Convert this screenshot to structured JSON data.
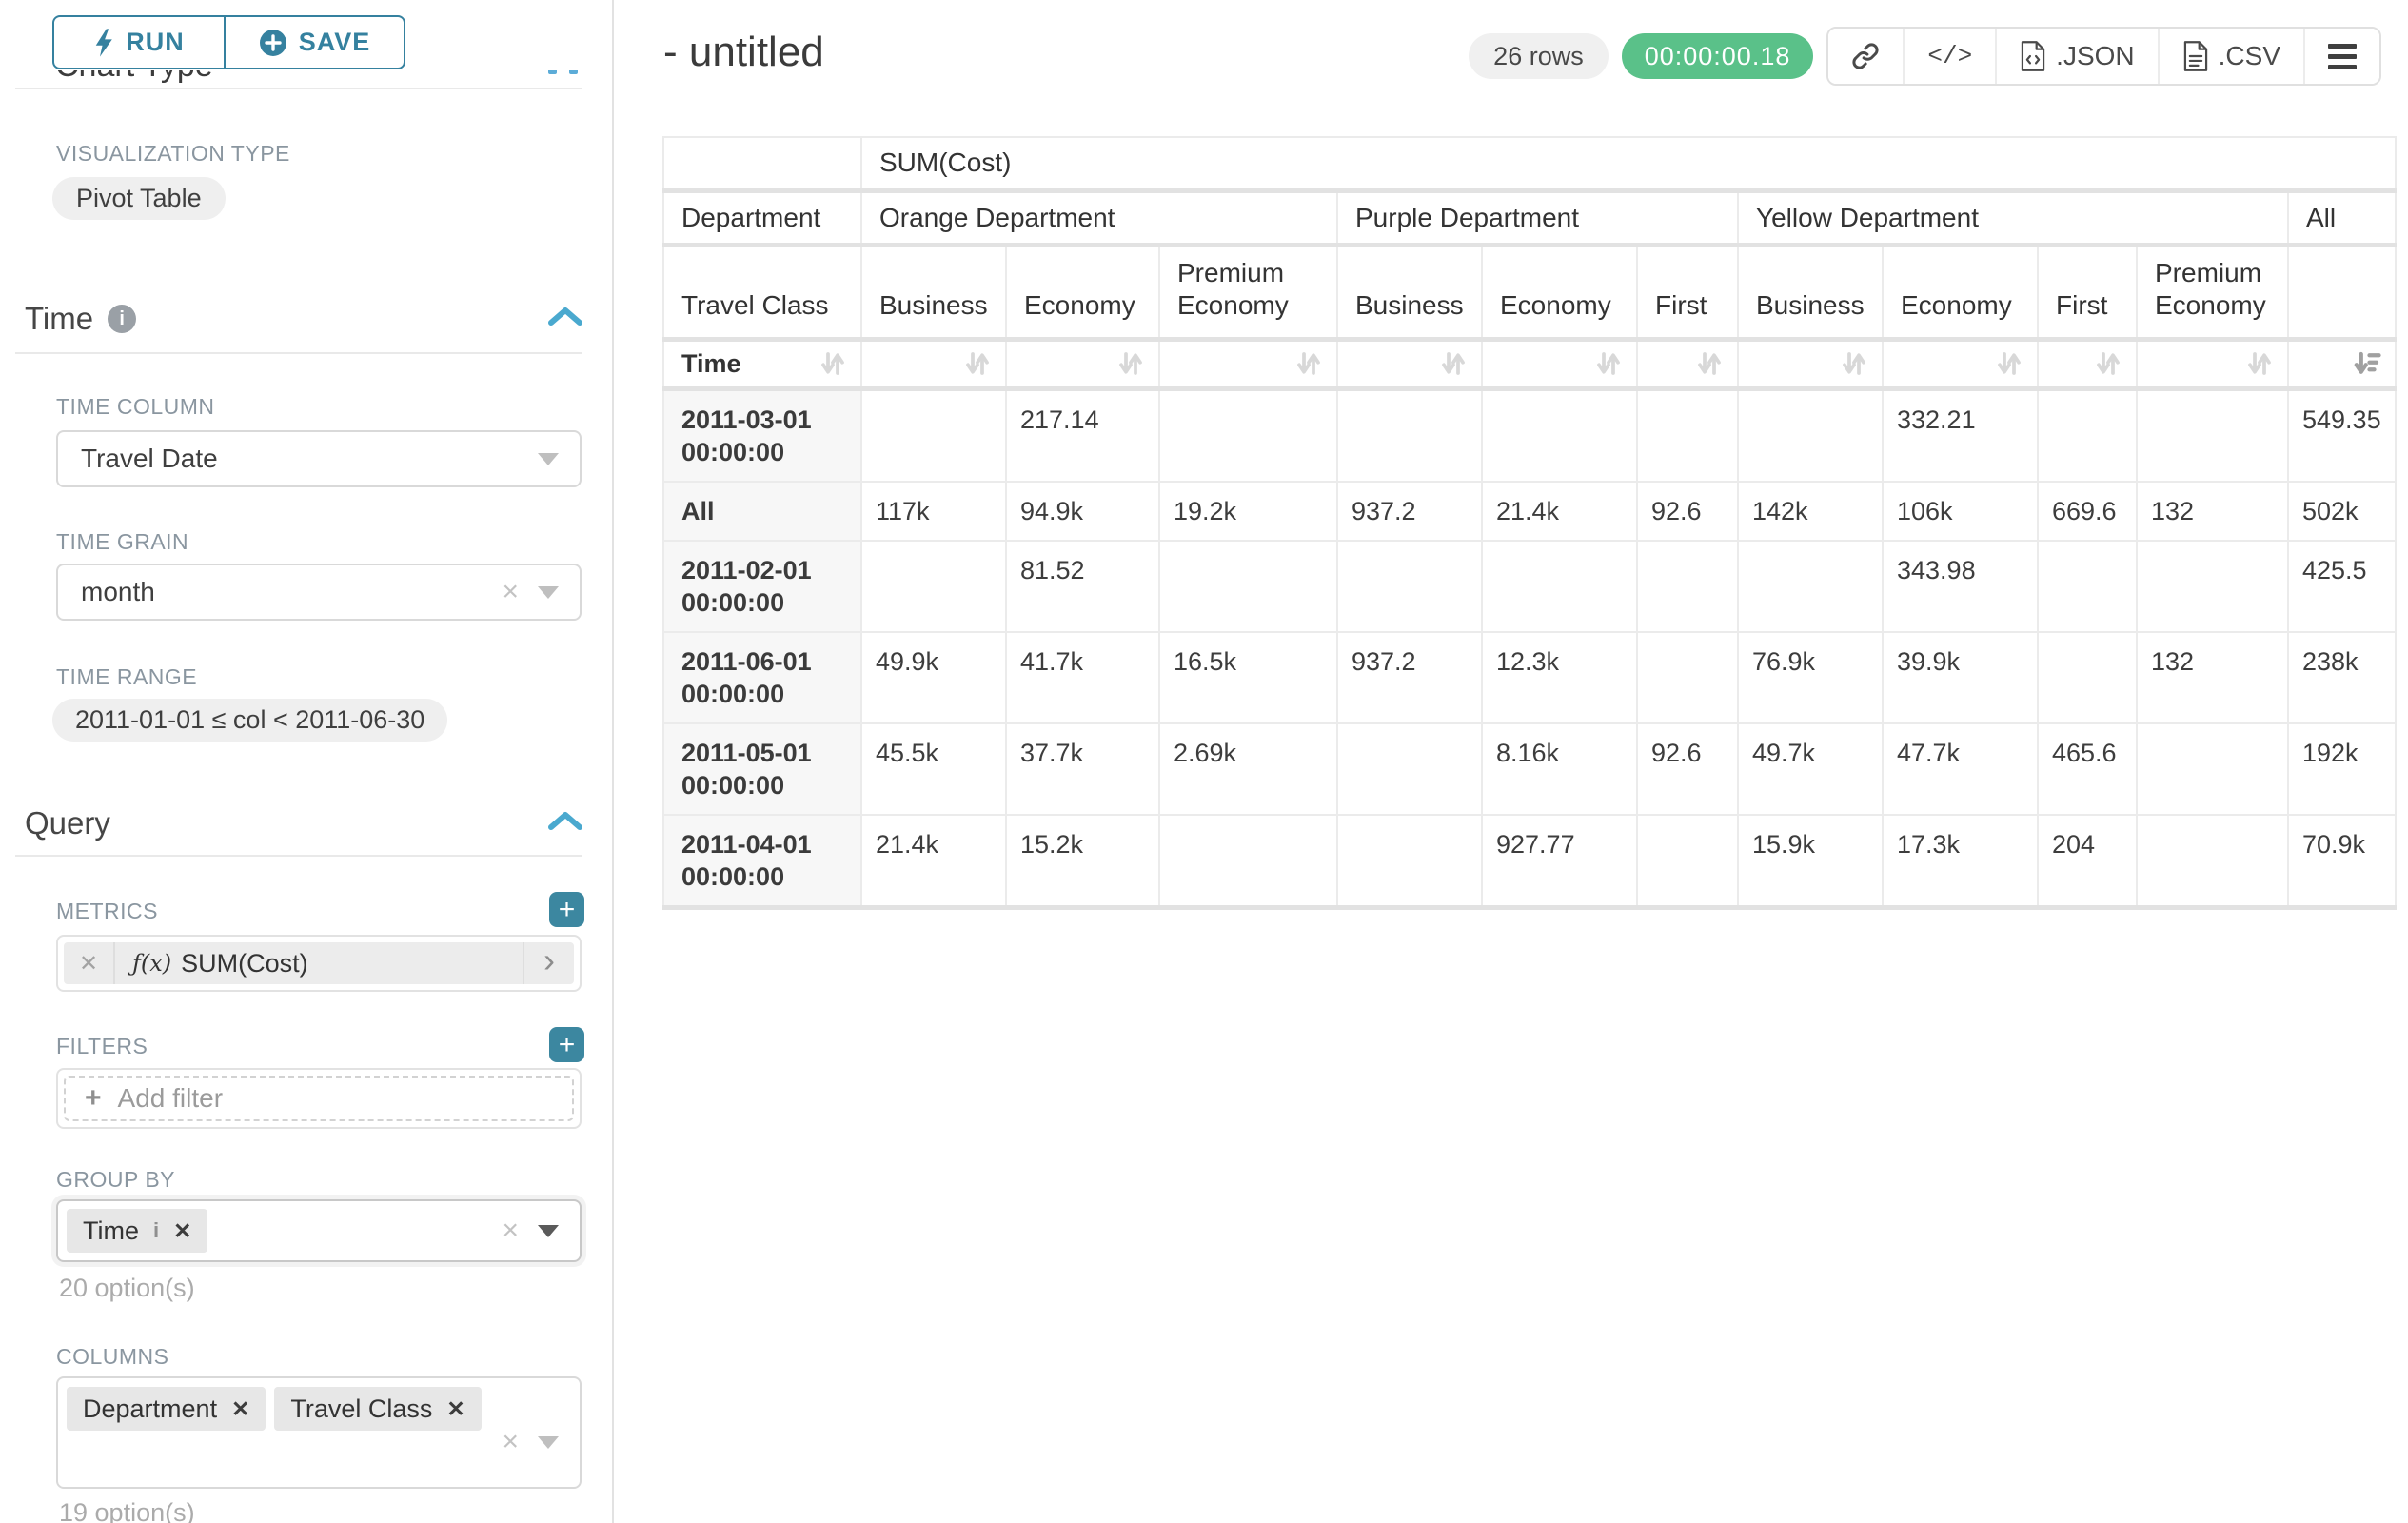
{
  "colors": {
    "accent_teal": "#35819f",
    "button_teal": "#3c87a0",
    "chevron_blue": "#4aa9cf",
    "success_green": "#5ac189",
    "pill_grey": "#efefef",
    "border_grey": "#e2e2e2"
  },
  "sidebar": {
    "run_label": "RUN",
    "save_label": "SAVE",
    "chart_type_heading": "Chart Type",
    "visualization_type_label": "VISUALIZATION TYPE",
    "visualization_type_value": "Pivot Table",
    "time_section": {
      "title": "Time",
      "time_column_label": "TIME COLUMN",
      "time_column_value": "Travel Date",
      "time_grain_label": "TIME GRAIN",
      "time_grain_value": "month",
      "time_range_label": "TIME RANGE",
      "time_range_value": "2011-01-01 ≤ col < 2011-06-30"
    },
    "query_section": {
      "title": "Query",
      "metrics_label": "METRICS",
      "metric_prefix": "ƒ(x)",
      "metric_value": "SUM(Cost)",
      "filters_label": "FILTERS",
      "add_filter_label": "Add filter",
      "group_by_label": "GROUP BY",
      "group_by_tags": [
        "Time"
      ],
      "group_by_hint": "20 option(s)",
      "columns_label": "COLUMNS",
      "columns_tags": [
        "Department",
        "Travel Class"
      ],
      "columns_hint": "19 option(s)"
    }
  },
  "header": {
    "title": "- untitled",
    "row_count": "26 rows",
    "query_time": "00:00:00.18",
    "json_label": ".JSON",
    "csv_label": ".CSV"
  },
  "chart_data": {
    "type": "table",
    "metric_header": "SUM(Cost)",
    "row_dimension": {
      "name": "Department",
      "sub": "Travel Class",
      "index": "Time"
    },
    "column_groups": [
      {
        "label": "Orange Department",
        "children": [
          "Business",
          "Economy",
          "Premium Economy"
        ]
      },
      {
        "label": "Purple Department",
        "children": [
          "Business",
          "Economy",
          "First"
        ]
      },
      {
        "label": "Yellow Department",
        "children": [
          "Business",
          "Economy",
          "First",
          "Premium Economy"
        ]
      },
      {
        "label": "All",
        "children": [
          ""
        ]
      }
    ],
    "rows": [
      {
        "label": "2011-03-01 00:00:00",
        "values": [
          "",
          "217.14",
          "",
          "",
          "",
          "",
          "",
          "332.21",
          "",
          "",
          "549.35"
        ]
      },
      {
        "label": "All",
        "values": [
          "117k",
          "94.9k",
          "19.2k",
          "937.2",
          "21.4k",
          "92.6",
          "142k",
          "106k",
          "669.6",
          "132",
          "502k"
        ]
      },
      {
        "label": "2011-02-01 00:00:00",
        "values": [
          "",
          "81.52",
          "",
          "",
          "",
          "",
          "",
          "343.98",
          "",
          "",
          "425.5"
        ]
      },
      {
        "label": "2011-06-01 00:00:00",
        "values": [
          "49.9k",
          "41.7k",
          "16.5k",
          "937.2",
          "12.3k",
          "",
          "76.9k",
          "39.9k",
          "",
          "132",
          "238k"
        ]
      },
      {
        "label": "2011-05-01 00:00:00",
        "values": [
          "45.5k",
          "37.7k",
          "2.69k",
          "",
          "8.16k",
          "92.6",
          "49.7k",
          "47.7k",
          "465.6",
          "",
          "192k"
        ]
      },
      {
        "label": "2011-04-01 00:00:00",
        "values": [
          "21.4k",
          "15.2k",
          "",
          "",
          "927.77",
          "",
          "15.9k",
          "17.3k",
          "204",
          "",
          "70.9k"
        ]
      }
    ],
    "sorted_column": "All",
    "sort_direction": "desc"
  }
}
